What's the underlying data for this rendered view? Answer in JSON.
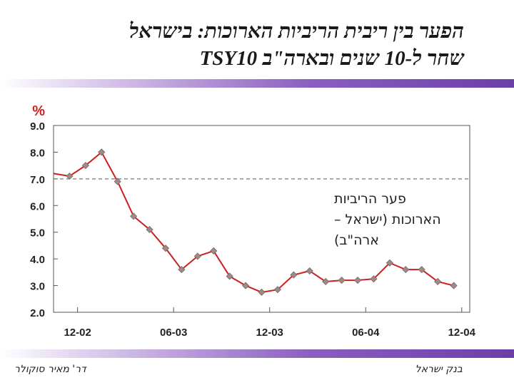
{
  "title": {
    "line1": "הפער בין ריבית הריביות הארוכות: בישראל",
    "line2": "שחר ל-10 שנים ובארה\"ב TSY10"
  },
  "footer": {
    "left": "דר' מאיר סוקולר",
    "right": "בנק ישראל"
  },
  "colors": {
    "series_line": "#cc1f1f",
    "marker": "#9e8a8a",
    "reference_line": "#777777",
    "band": "#6b3fa8"
  },
  "chart_data": {
    "type": "line",
    "ylabel": "%",
    "ylim": [
      2.0,
      9.0
    ],
    "yticks": [
      "9.0",
      "8.0",
      "7.0",
      "6.0",
      "5.0",
      "4.0",
      "3.0",
      "2.0"
    ],
    "xticks": [
      "12-02",
      "06-03",
      "12-03",
      "06-04",
      "12-04"
    ],
    "reference_line": 7.0,
    "annotation": [
      "פער הריביות",
      "הארוכות (ישראל –",
      "ארה\"ב)"
    ],
    "series": [
      {
        "x": [
          "11-02",
          "12-02",
          "01-03",
          "02-03",
          "03-03",
          "04-03",
          "05-03",
          "06-03",
          "07-03",
          "08-03",
          "09-03",
          "10-03",
          "11-03",
          "12-03",
          "01-04",
          "02-04",
          "03-04",
          "04-04",
          "05-04",
          "06-04",
          "07-04",
          "08-04",
          "09-04",
          "10-04",
          "11-04",
          "12-04",
          "01-05"
        ],
        "values": [
          7.2,
          7.1,
          7.5,
          8.0,
          6.9,
          5.6,
          5.1,
          4.4,
          3.6,
          4.1,
          4.3,
          3.35,
          3.0,
          2.75,
          2.85,
          3.4,
          3.55,
          3.15,
          3.2,
          3.2,
          3.25,
          3.85,
          3.6,
          3.6,
          3.15,
          3.0,
          null
        ]
      }
    ]
  }
}
